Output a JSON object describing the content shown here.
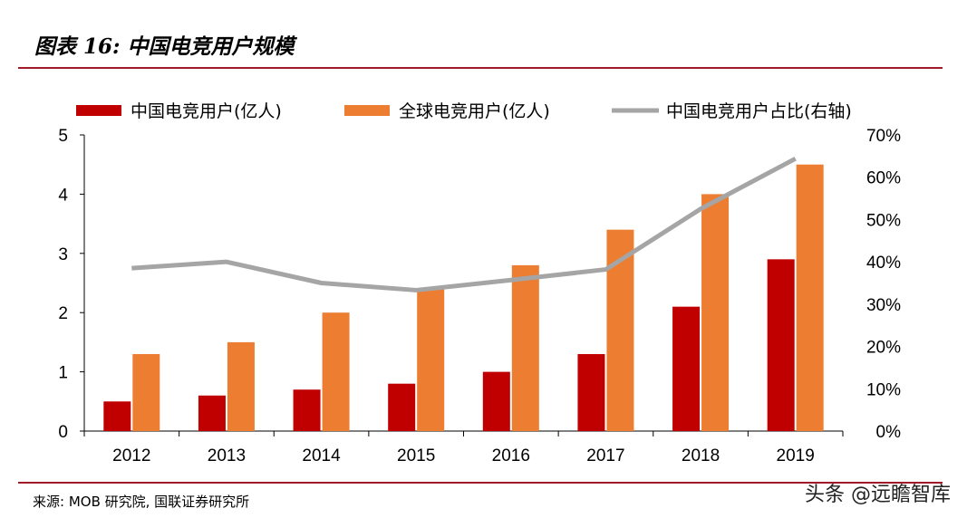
{
  "title": "图表 16: 中国电竞用户规模",
  "source": "来源: MOB 研究院, 国联证券研究所",
  "watermark": "头条 @远瞻智库",
  "chart_data": {
    "type": "bar",
    "categories": [
      "2012",
      "2013",
      "2014",
      "2015",
      "2016",
      "2017",
      "2018",
      "2019"
    ],
    "series": [
      {
        "name": "中国电竞用户(亿人)",
        "type": "bar",
        "axis": "left",
        "color": "#c00000",
        "values": [
          0.5,
          0.6,
          0.7,
          0.8,
          1.0,
          1.3,
          2.1,
          2.9
        ]
      },
      {
        "name": "全球电竞用户(亿人)",
        "type": "bar",
        "axis": "left",
        "color": "#ed7d31",
        "values": [
          1.3,
          1.5,
          2.0,
          2.4,
          2.8,
          3.4,
          4.0,
          4.5
        ]
      },
      {
        "name": "中国电竞用户占比(右轴)",
        "type": "line",
        "axis": "right",
        "color": "#a5a5a5",
        "values": [
          38.5,
          40.0,
          35.0,
          33.3,
          35.7,
          38.2,
          52.5,
          64.4
        ]
      }
    ],
    "ylim": [
      0,
      5
    ],
    "yticks": [
      "0",
      "1",
      "2",
      "3",
      "4",
      "5"
    ],
    "y2lim": [
      0,
      70
    ],
    "y2ticks": [
      "0%",
      "10%",
      "20%",
      "30%",
      "40%",
      "50%",
      "60%",
      "70%"
    ],
    "grid": false,
    "legend": "top"
  }
}
